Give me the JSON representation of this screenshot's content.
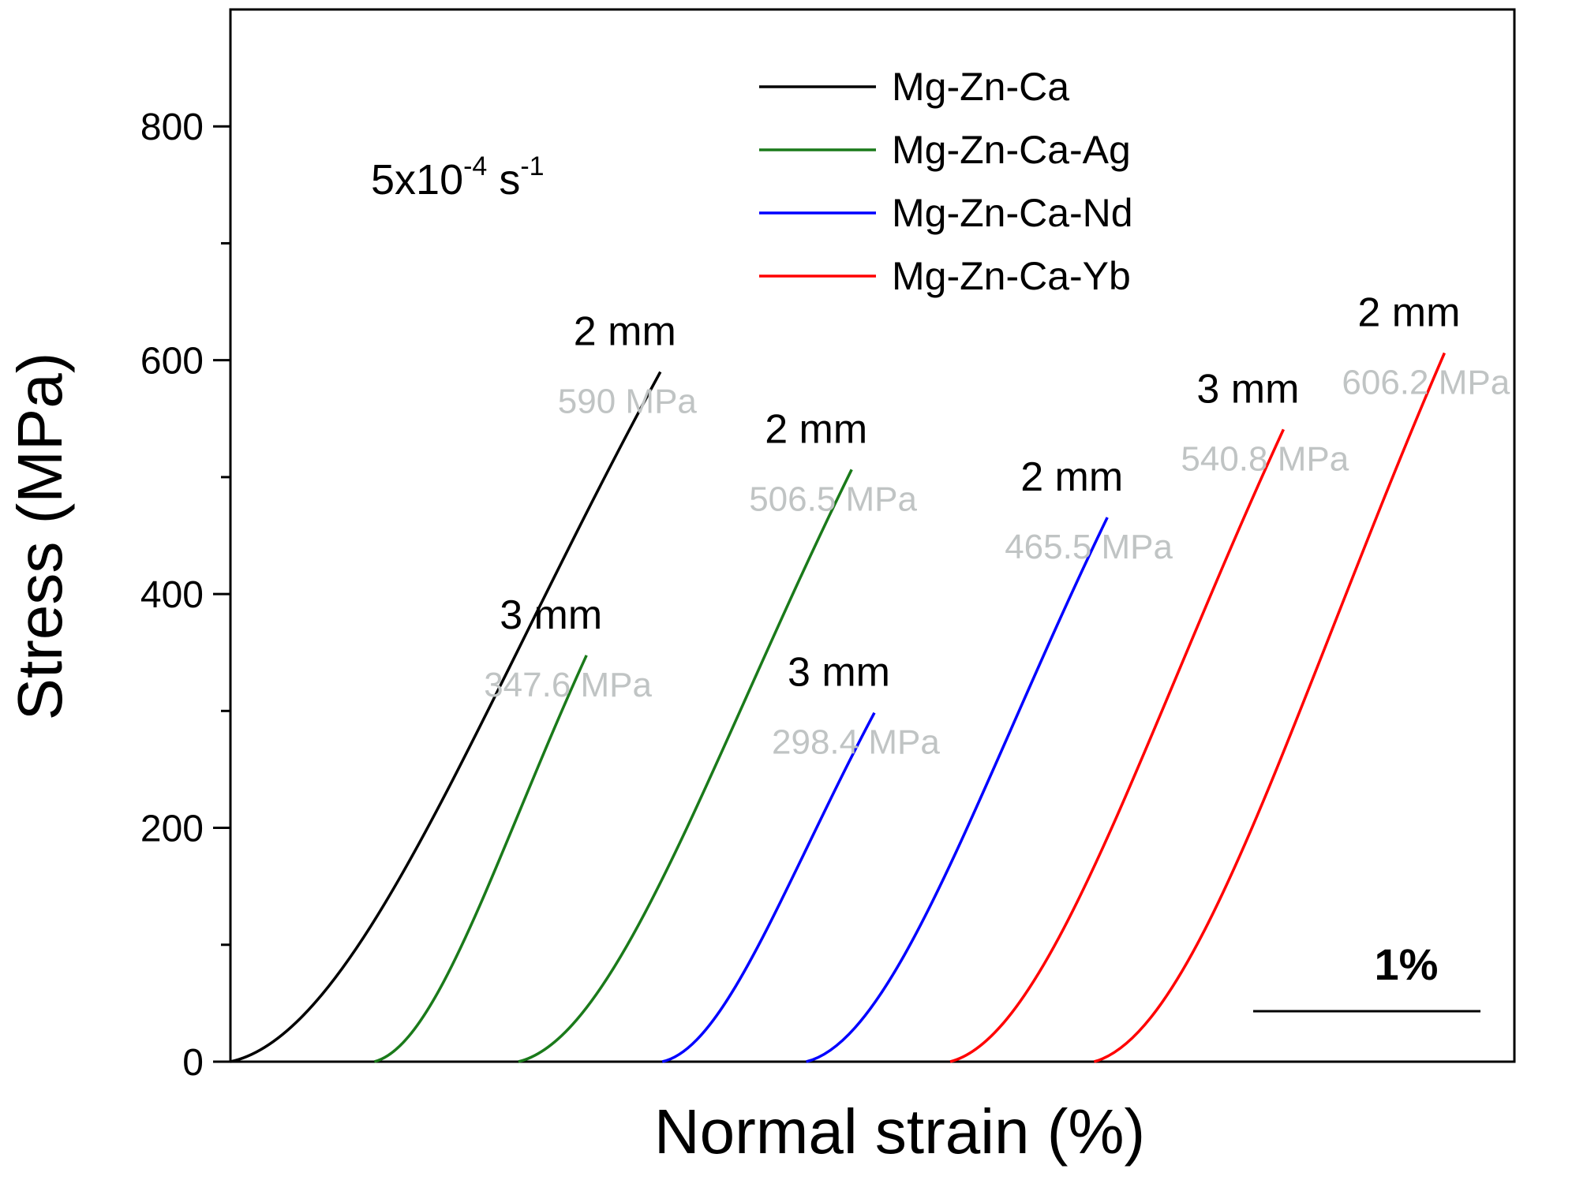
{
  "chart_data": {
    "type": "line",
    "xlabel": "Normal strain (%)",
    "ylabel": "Stress (MPa)",
    "ylim": [
      0,
      900
    ],
    "yticks": [
      "0",
      "200",
      "400",
      "600",
      "800"
    ],
    "x_ticks_shown": false,
    "grid": false,
    "legend_position": "top-right",
    "strain_rate": {
      "base": "5x10",
      "exp1": "-4",
      "unit": " s",
      "exp2": "-1"
    },
    "scale_bar": {
      "label": "1%",
      "strain_length": 1.0
    },
    "series": [
      {
        "name": "Mg-Zn-Ca",
        "color": "#000000"
      },
      {
        "name": "Mg-Zn-Ca-Ag",
        "color": "#1a7a1a"
      },
      {
        "name": "Mg-Zn-Ca-Nd",
        "color": "#0000ff"
      },
      {
        "name": "Mg-Zn-Ca-Yb",
        "color": "#ff0000"
      }
    ],
    "curves": [
      {
        "series": "Mg-Zn-Ca",
        "size_label": "2 mm",
        "strength_label": "590 MPa",
        "strength": 590,
        "x_start": 0.0,
        "x_end": 2.27
      },
      {
        "series": "Mg-Zn-Ca-Ag",
        "size_label": "3 mm",
        "strength_label": "347.6 MPa",
        "strength": 347.6,
        "x_start": 0.76,
        "x_end": 1.88
      },
      {
        "series": "Mg-Zn-Ca-Ag",
        "size_label": "2 mm",
        "strength_label": "506.5 MPa",
        "strength": 506.5,
        "x_start": 1.52,
        "x_end": 3.28
      },
      {
        "series": "Mg-Zn-Ca-Nd",
        "size_label": "3 mm",
        "strength_label": "298.4 MPa",
        "strength": 298.4,
        "x_start": 2.28,
        "x_end": 3.4
      },
      {
        "series": "Mg-Zn-Ca-Nd",
        "size_label": "2 mm",
        "strength_label": "465.5 MPa",
        "strength": 465.5,
        "x_start": 3.04,
        "x_end": 4.63
      },
      {
        "series": "Mg-Zn-Ca-Yb",
        "size_label": "3 mm",
        "strength_label": "540.8 MPa",
        "strength": 540.8,
        "x_start": 3.8,
        "x_end": 5.56
      },
      {
        "series": "Mg-Zn-Ca-Yb",
        "size_label": "2 mm",
        "strength_label": "606.2 MPa",
        "strength": 606.2,
        "x_start": 4.56,
        "x_end": 6.41
      }
    ]
  }
}
